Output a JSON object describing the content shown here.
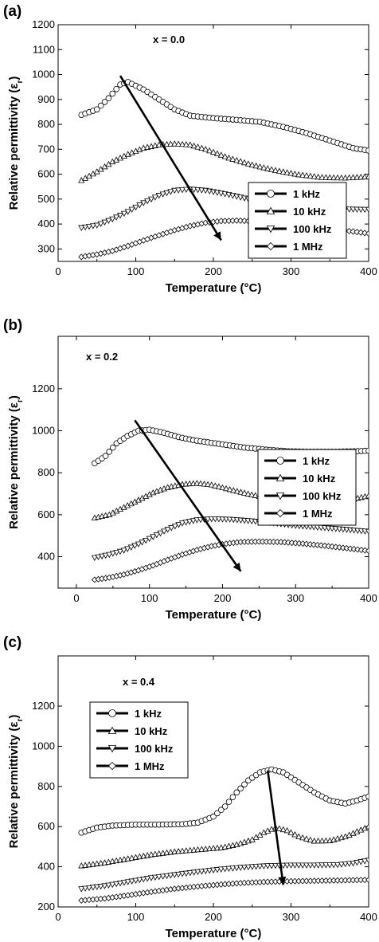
{
  "chart_data": [
    {
      "type": "scatter",
      "panel_label": "(a)",
      "annotation": "x = 0.0",
      "xlabel": "Temperature",
      "xlabel_unit": "(°C)",
      "ylabel": "Relative permittivity",
      "ylabel_symbol": "(ε",
      "ylabel_sub": "r",
      "ylabel_close": ")",
      "xlim": [
        0,
        400
      ],
      "ylim": [
        250,
        1200
      ],
      "xticks": [
        0,
        100,
        200,
        300,
        400
      ],
      "yticks": [
        300,
        400,
        500,
        600,
        700,
        800,
        900,
        1000,
        1100,
        1200
      ],
      "legend_position": "right",
      "arrow": {
        "from": [
          80,
          995
        ],
        "to": [
          210,
          335
        ]
      },
      "series": [
        {
          "name": "1 kHz",
          "marker": "circle",
          "x": [
            30,
            50,
            65,
            80,
            90,
            110,
            130,
            150,
            170,
            200,
            230,
            260,
            290,
            320,
            350,
            380,
            400
          ],
          "y": [
            838,
            860,
            905,
            960,
            970,
            940,
            900,
            860,
            835,
            825,
            818,
            810,
            790,
            765,
            735,
            705,
            695
          ]
        },
        {
          "name": "10 kHz",
          "marker": "triangle-up",
          "x": [
            30,
            50,
            70,
            90,
            110,
            130,
            150,
            170,
            190,
            220,
            250,
            280,
            310,
            340,
            370,
            400
          ],
          "y": [
            575,
            610,
            650,
            680,
            705,
            718,
            722,
            718,
            700,
            665,
            637,
            615,
            598,
            587,
            585,
            590
          ]
        },
        {
          "name": "100 kHz",
          "marker": "triangle-down",
          "x": [
            30,
            50,
            70,
            90,
            110,
            130,
            150,
            170,
            190,
            220,
            250,
            280,
            310,
            340,
            370,
            400
          ],
          "y": [
            385,
            395,
            420,
            450,
            485,
            515,
            535,
            540,
            535,
            518,
            497,
            480,
            468,
            462,
            460,
            458
          ]
        },
        {
          "name": "1 MHz",
          "marker": "diamond",
          "x": [
            30,
            50,
            70,
            90,
            110,
            130,
            150,
            170,
            190,
            210,
            230,
            260,
            290,
            320,
            350,
            380,
            400
          ],
          "y": [
            268,
            278,
            292,
            312,
            334,
            355,
            375,
            392,
            405,
            412,
            414,
            410,
            400,
            390,
            380,
            370,
            362
          ]
        }
      ]
    },
    {
      "type": "scatter",
      "panel_label": "(b)",
      "annotation": "x = 0.2",
      "xlabel": "Temperature",
      "xlabel_unit": "(°C)",
      "ylabel": "Relative permittivity",
      "ylabel_symbol": "(ε",
      "ylabel_sub": "r",
      "ylabel_close": ")",
      "xlim": [
        -25,
        400
      ],
      "ylim": [
        250,
        1450
      ],
      "xticks": [
        0,
        100,
        200,
        300,
        400
      ],
      "yticks": [
        400,
        600,
        800,
        1000,
        1200
      ],
      "legend_position": "right",
      "arrow": {
        "from": [
          80,
          1050
        ],
        "to": [
          225,
          330
        ]
      },
      "series": [
        {
          "name": "1 kHz",
          "marker": "circle",
          "x": [
            25,
            40,
            55,
            70,
            85,
            100,
            120,
            140,
            160,
            180,
            200,
            230,
            260,
            290,
            320,
            350,
            380,
            400
          ],
          "y": [
            845,
            880,
            940,
            975,
            1000,
            1005,
            990,
            970,
            955,
            945,
            935,
            920,
            910,
            902,
            900,
            900,
            902,
            905
          ]
        },
        {
          "name": "10 kHz",
          "marker": "triangle-up",
          "x": [
            25,
            45,
            65,
            85,
            105,
            125,
            145,
            165,
            185,
            210,
            240,
            270,
            300,
            330,
            360,
            400
          ],
          "y": [
            585,
            600,
            635,
            670,
            705,
            730,
            745,
            750,
            742,
            720,
            695,
            675,
            660,
            655,
            660,
            690
          ]
        },
        {
          "name": "100 kHz",
          "marker": "triangle-down",
          "x": [
            25,
            45,
            65,
            85,
            105,
            125,
            145,
            165,
            185,
            210,
            240,
            270,
            300,
            330,
            360,
            400
          ],
          "y": [
            395,
            410,
            430,
            460,
            495,
            530,
            560,
            575,
            580,
            578,
            570,
            560,
            548,
            540,
            532,
            520
          ]
        },
        {
          "name": "1 MHz",
          "marker": "diamond",
          "x": [
            25,
            45,
            65,
            85,
            105,
            125,
            145,
            165,
            185,
            205,
            225,
            250,
            280,
            310,
            340,
            370,
            400
          ],
          "y": [
            290,
            300,
            315,
            335,
            358,
            385,
            410,
            432,
            450,
            462,
            470,
            472,
            470,
            462,
            452,
            440,
            428
          ]
        }
      ]
    },
    {
      "type": "scatter",
      "panel_label": "(c)",
      "annotation": "x = 0.4",
      "xlabel": "Temperature",
      "xlabel_unit": "(°C)",
      "ylabel": "Relative permittivity",
      "ylabel_symbol": "(ε",
      "ylabel_sub": "r",
      "ylabel_close": ")",
      "xlim": [
        0,
        400
      ],
      "ylim": [
        200,
        1450
      ],
      "xticks": [
        0,
        100,
        200,
        300,
        400
      ],
      "yticks": [
        200,
        400,
        600,
        800,
        1000,
        1200
      ],
      "legend_position": "top-left",
      "arrow": {
        "from": [
          270,
          880
        ],
        "to": [
          290,
          310
        ]
      },
      "series": [
        {
          "name": "1 kHz",
          "marker": "circle",
          "x": [
            30,
            50,
            70,
            100,
            130,
            160,
            180,
            200,
            215,
            230,
            245,
            260,
            275,
            290,
            310,
            330,
            350,
            370,
            385,
            400
          ],
          "y": [
            570,
            595,
            605,
            610,
            610,
            612,
            620,
            650,
            700,
            770,
            830,
            870,
            885,
            870,
            820,
            770,
            730,
            715,
            730,
            750
          ]
        },
        {
          "name": "10 kHz",
          "marker": "triangle-up",
          "x": [
            30,
            60,
            90,
            120,
            150,
            180,
            210,
            230,
            250,
            265,
            280,
            295,
            310,
            330,
            350,
            370,
            385,
            400
          ],
          "y": [
            405,
            420,
            440,
            460,
            475,
            485,
            495,
            510,
            535,
            570,
            595,
            580,
            550,
            528,
            530,
            550,
            575,
            600
          ]
        },
        {
          "name": "100 kHz",
          "marker": "triangle-down",
          "x": [
            30,
            60,
            90,
            120,
            150,
            180,
            210,
            240,
            270,
            300,
            330,
            360,
            380,
            400
          ],
          "y": [
            290,
            305,
            325,
            345,
            360,
            375,
            388,
            398,
            405,
            408,
            408,
            410,
            418,
            432
          ]
        },
        {
          "name": "1 MHz",
          "marker": "diamond",
          "x": [
            30,
            60,
            90,
            120,
            150,
            180,
            210,
            240,
            270,
            300,
            330,
            360,
            400
          ],
          "y": [
            232,
            242,
            258,
            275,
            290,
            302,
            312,
            320,
            325,
            328,
            330,
            332,
            335
          ]
        }
      ]
    }
  ]
}
